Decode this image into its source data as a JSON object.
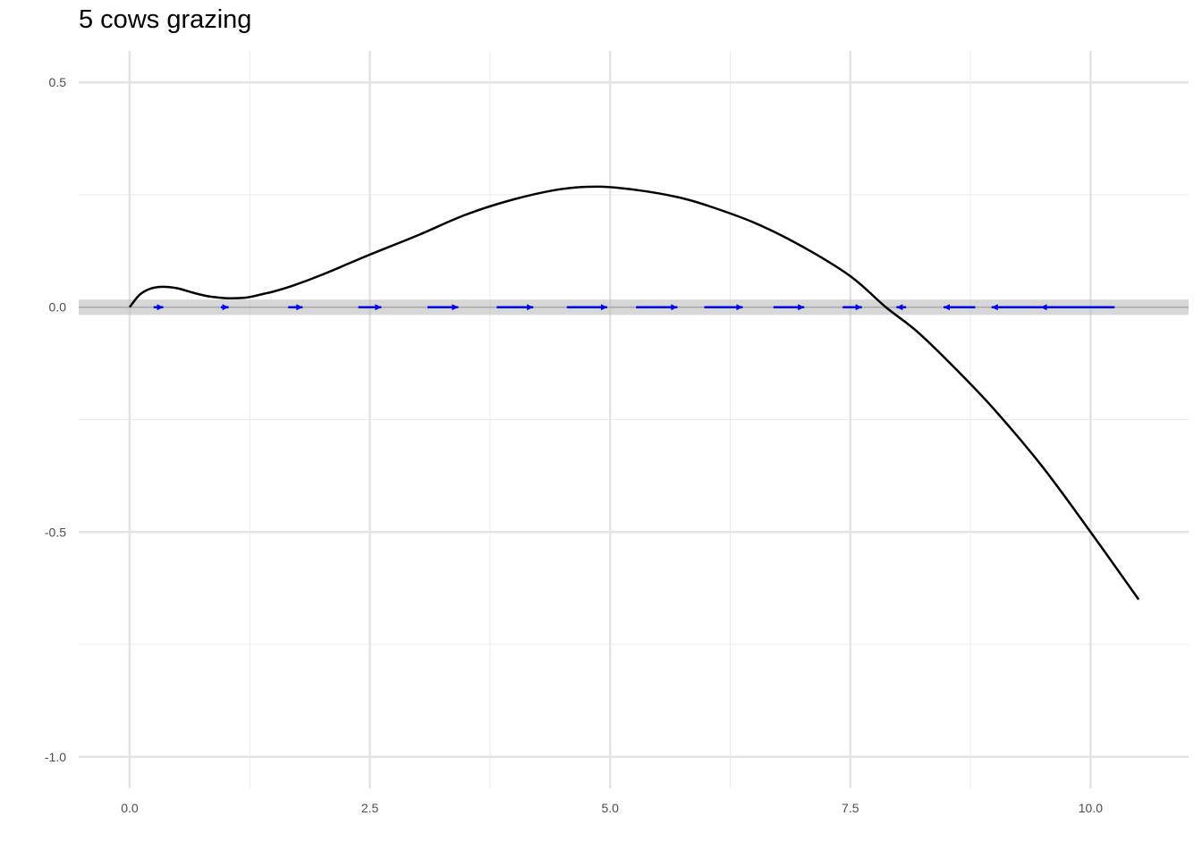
{
  "chart_data": {
    "type": "line",
    "title": "5 cows grazing",
    "xlabel": "",
    "ylabel": "",
    "xlim": [
      -0.53,
      11.02
    ],
    "ylim": [
      -1.07,
      0.57
    ],
    "x_ticks": [
      0.0,
      2.5,
      5.0,
      7.5,
      10.0
    ],
    "x_tick_labels": [
      "0.0",
      "2.5",
      "5.0",
      "7.5",
      "10.0"
    ],
    "y_ticks": [
      0.5,
      0.0,
      -0.5,
      -1.0
    ],
    "y_tick_labels": [
      "0.5",
      "0.0",
      "-0.5",
      "-1.0"
    ],
    "x_minor_ticks": [
      1.25,
      3.75,
      6.25,
      8.75
    ],
    "y_minor_ticks": [
      0.25,
      -0.25,
      -0.75
    ],
    "grid": true,
    "zero_band": {
      "y": 0.0,
      "halfwidth": 0.017
    },
    "curve": {
      "x": [
        0.0,
        0.1,
        0.2,
        0.3,
        0.4,
        0.5,
        0.6,
        0.7,
        0.8,
        0.9,
        1.0,
        1.1,
        1.2,
        1.3,
        1.4,
        1.5,
        1.7,
        2.0,
        2.5,
        3.0,
        3.5,
        4.0,
        4.5,
        4.9,
        5.3,
        5.7,
        6.0,
        6.5,
        7.0,
        7.5,
        7.87,
        8.2,
        8.6,
        9.0,
        9.5,
        10.0,
        10.5
      ],
      "y": [
        0.0,
        0.027,
        0.04,
        0.045,
        0.045,
        0.042,
        0.036,
        0.03,
        0.025,
        0.022,
        0.02,
        0.02,
        0.021,
        0.025,
        0.03,
        0.035,
        0.048,
        0.072,
        0.117,
        0.16,
        0.206,
        0.24,
        0.263,
        0.268,
        0.26,
        0.245,
        0.227,
        0.188,
        0.135,
        0.069,
        0.0,
        -0.055,
        -0.138,
        -0.228,
        -0.355,
        -0.5,
        -0.65
      ],
      "color": "#000000"
    },
    "arrows": {
      "color": "#0000ff",
      "y": 0.0,
      "segments": [
        {
          "x0": 0.25,
          "x1": 0.35
        },
        {
          "x0": 0.95,
          "x1": 1.03
        },
        {
          "x0": 1.65,
          "x1": 1.8
        },
        {
          "x0": 2.38,
          "x1": 2.62
        },
        {
          "x0": 3.1,
          "x1": 3.42
        },
        {
          "x0": 3.82,
          "x1": 4.2
        },
        {
          "x0": 4.55,
          "x1": 4.97
        },
        {
          "x0": 5.27,
          "x1": 5.7
        },
        {
          "x0": 5.98,
          "x1": 6.38
        },
        {
          "x0": 6.7,
          "x1": 7.02
        },
        {
          "x0": 7.42,
          "x1": 7.62
        },
        {
          "x0": 8.08,
          "x1": 7.98
        },
        {
          "x0": 8.8,
          "x1": 8.47
        },
        {
          "x0": 9.52,
          "x1": 8.97
        },
        {
          "x0": 10.25,
          "x1": 9.48
        }
      ]
    }
  }
}
